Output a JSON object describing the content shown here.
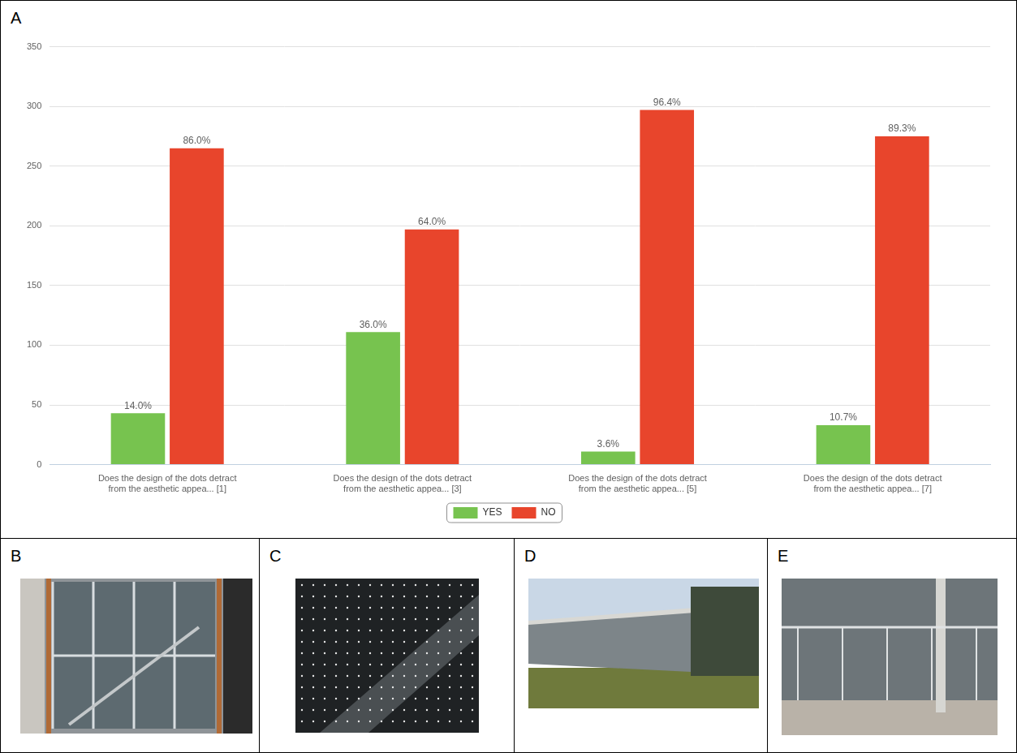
{
  "panel_labels": [
    "A",
    "B",
    "C",
    "D",
    "E"
  ],
  "chart_data": {
    "type": "bar",
    "categories": [
      "Does the design of the dots detract from the aesthetic appea... [1]",
      "Does the design of the dots detract from the aesthetic appea... [3]",
      "Does the design of the dots detract from the aesthetic appea... [5]",
      "Does the design of the dots detract from the aesthetic appea... [7]"
    ],
    "series": [
      {
        "name": "YES",
        "color": "#77c34f",
        "values": [
          43,
          111,
          11,
          33
        ],
        "percent_labels": [
          "14.0%",
          "36.0%",
          "3.6%",
          "10.7%"
        ]
      },
      {
        "name": "NO",
        "color": "#e8452c",
        "values": [
          265,
          197,
          297,
          275
        ],
        "percent_labels": [
          "86.0%",
          "64.0%",
          "96.4%",
          "89.3%"
        ]
      }
    ],
    "ylim": [
      0,
      350
    ],
    "yticks": [
      0,
      50,
      100,
      150,
      200,
      250,
      300,
      350
    ],
    "grid": true,
    "legend": "bottom"
  }
}
